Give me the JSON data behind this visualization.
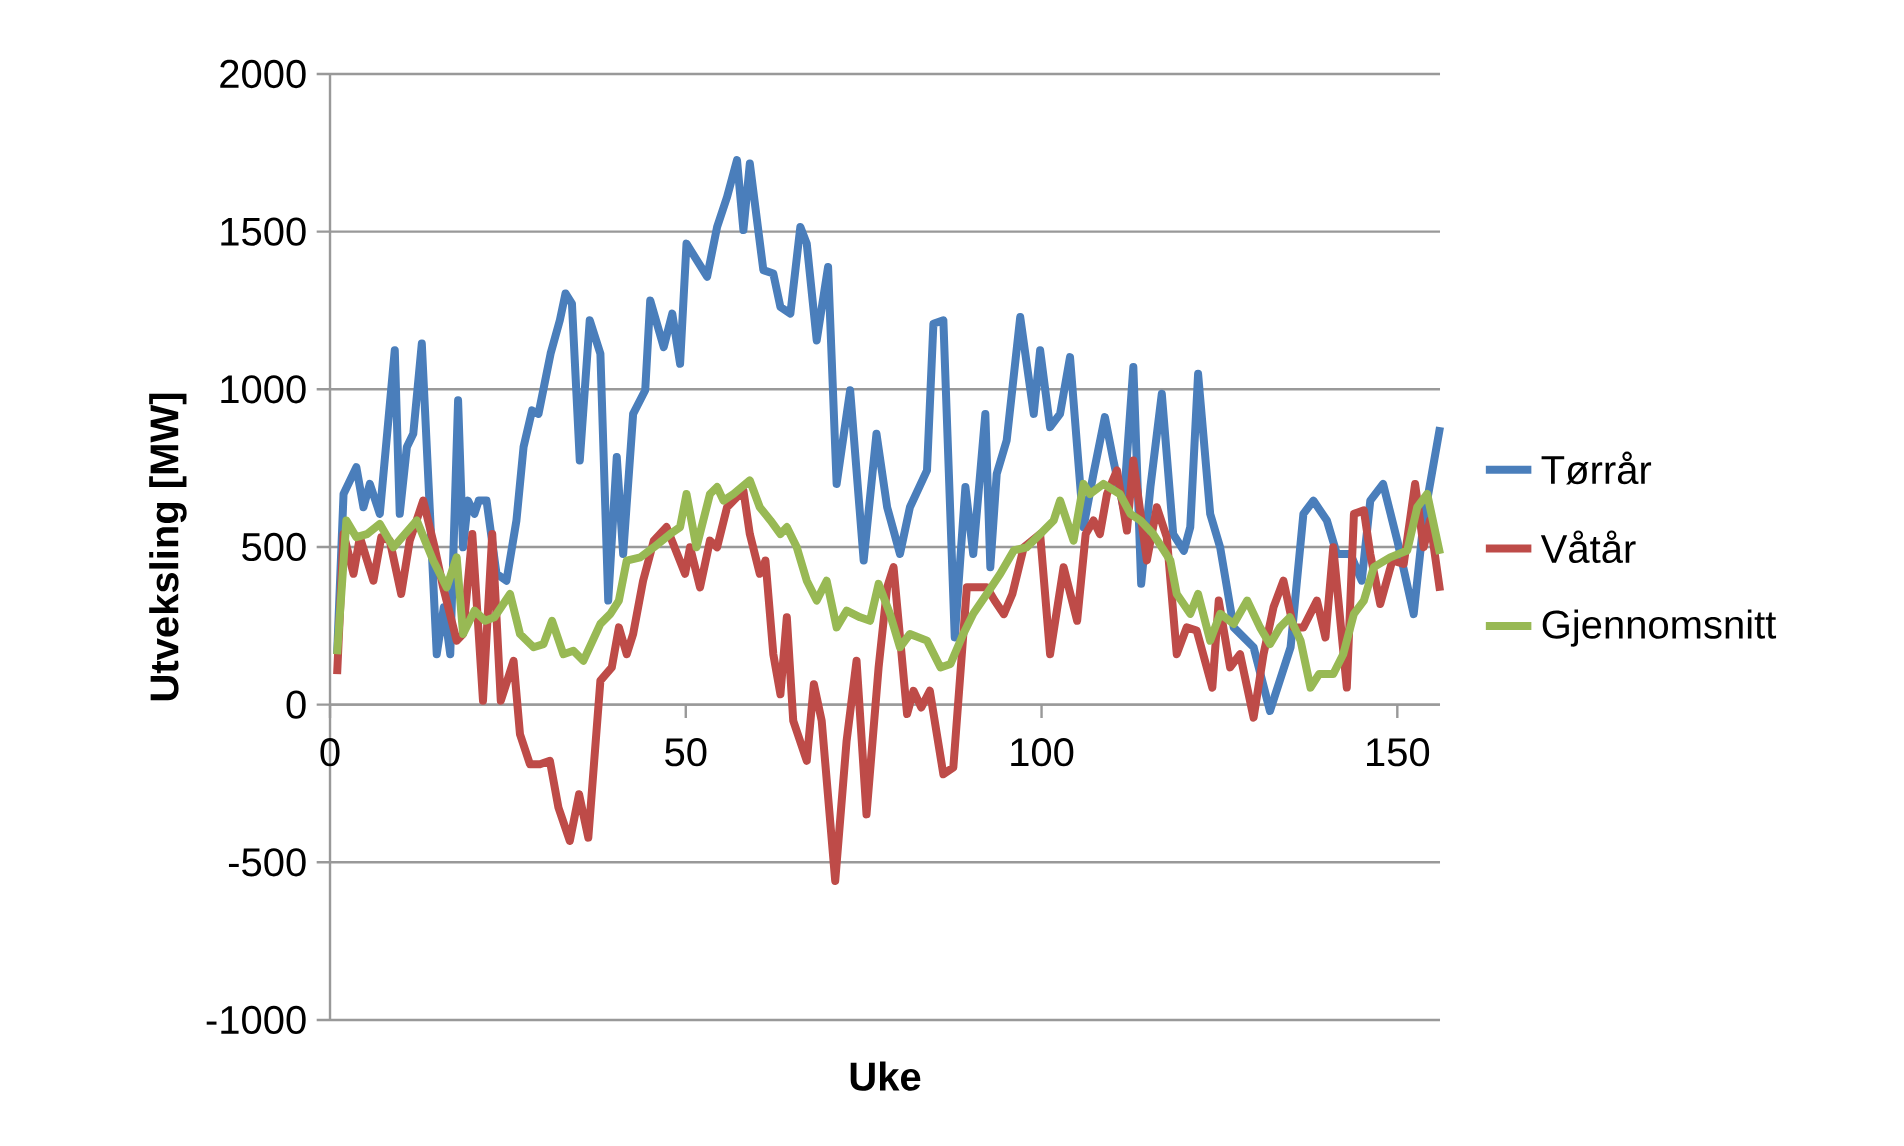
{
  "chart_data": {
    "type": "line",
    "xlabel": "Uke",
    "ylabel": "Utveksling [MW]",
    "xlim": [
      0,
      156
    ],
    "xticks": [
      0,
      50,
      100,
      150
    ],
    "ylim": [
      -1000,
      2000
    ],
    "yticks": [
      -1000,
      -500,
      0,
      500,
      1000,
      1500,
      2000
    ],
    "grid": "y",
    "legend": "right",
    "marker": "none",
    "line_style": "solid",
    "series": [
      {
        "name": "Tørrår",
        "color": "#4a7ebb",
        "x": [
          1,
          1.9,
          3.7,
          4.7,
          5.6,
          7,
          9.1,
          9.8,
          10.8,
          11.7,
          12.9,
          15,
          16,
          16.9,
          18,
          18.7,
          19.4,
          20.3,
          20.9,
          22,
          23.4,
          24.8,
          26.2,
          27.2,
          28.4,
          29.3,
          31,
          32.3,
          33.1,
          34,
          35.1,
          36.5,
          38,
          39.1,
          40.3,
          41.2,
          42.6,
          44.3,
          45,
          46.9,
          48.1,
          49.2,
          50.1,
          53,
          54.4,
          55.8,
          57.2,
          58.1,
          59,
          60.9,
          62.3,
          63.3,
          64.7,
          66.1,
          67,
          68.4,
          70,
          71.2,
          73.1,
          75,
          76.8,
          78.3,
          80.1,
          81.5,
          83.9,
          84.8,
          86.2,
          87.8,
          89.3,
          90.4,
          92.1,
          92.8,
          93.7,
          95.1,
          97,
          98.9,
          99.8,
          101.2,
          102.6,
          104,
          105.9,
          107.3,
          108.9,
          110.1,
          111.5,
          112.9,
          114,
          115.3,
          116.9,
          118.5,
          120,
          120.9,
          122,
          123.7,
          125.1,
          127,
          129.8,
          132.1,
          135,
          136.8,
          138.2,
          140.1,
          141.5,
          143.4,
          145,
          146.2,
          148,
          150,
          152.3,
          153.7,
          156
        ],
        "values": [
          160,
          668,
          753,
          626,
          700,
          605,
          1124,
          605,
          817,
          859,
          1145,
          160,
          309,
          160,
          965,
          499,
          647,
          605,
          647,
          647,
          415,
          393,
          584,
          817,
          933,
          922,
          1113,
          1219,
          1304,
          1272,
          774,
          1219,
          1113,
          330,
          785,
          478,
          922,
          997,
          1282,
          1134,
          1240,
          1081,
          1462,
          1357,
          1515,
          1610,
          1727,
          1505,
          1716,
          1378,
          1367,
          1261,
          1240,
          1515,
          1462,
          1155,
          1388,
          700,
          997,
          457,
          859,
          626,
          478,
          626,
          743,
          1208,
          1219,
          213,
          690,
          478,
          922,
          436,
          732,
          838,
          1229,
          922,
          1124,
          880,
          922,
          1102,
          563,
          732,
          912,
          774,
          626,
          1071,
          383,
          690,
          986,
          541,
          488,
          563,
          1049,
          605,
          499,
          245,
          182,
          -20,
          182,
          605,
          647,
          584,
          478,
          478,
          393,
          647,
          700,
          520,
          287,
          584,
          880
        ]
      },
      {
        "name": "Våtår",
        "color": "#be4b48",
        "x": [
          1,
          1.9,
          3.3,
          4.2,
          6.1,
          7.2,
          8.4,
          10,
          11.2,
          13.1,
          14.7,
          15.9,
          17.8,
          18.7,
          20,
          21.5,
          22.8,
          24,
          25.8,
          26.7,
          28.1,
          29.5,
          30.9,
          32.1,
          33.7,
          35,
          36.3,
          38,
          39.6,
          40.6,
          41.7,
          42.6,
          44,
          45.5,
          47.3,
          49.9,
          50.6,
          52,
          53.4,
          54.4,
          55.8,
          58.1,
          59,
          60.4,
          61.2,
          62.3,
          63.3,
          64.2,
          65.1,
          67,
          68,
          69.1,
          71,
          72.6,
          74,
          75.4,
          77.1,
          78.3,
          79.2,
          81.1,
          82,
          83.1,
          84.3,
          86.2,
          87.6,
          89.5,
          90.9,
          92.3,
          93.4,
          94.7,
          95.9,
          97.5,
          99.8,
          101.2,
          103.1,
          105,
          106.2,
          107.3,
          108.2,
          109.2,
          110.6,
          112,
          112.9,
          114.8,
          116.2,
          117.6,
          119,
          120.4,
          121.8,
          124,
          124.9,
          126.5,
          127.9,
          129.8,
          131.2,
          132.6,
          134,
          135.4,
          136.8,
          138.7,
          139.9,
          141,
          142.9,
          143.9,
          145.3,
          146.2,
          147.6,
          149.3,
          150.9,
          152.5,
          153.7,
          154.6,
          156
        ],
        "values": [
          97,
          541,
          415,
          531,
          393,
          531,
          520,
          351,
          520,
          647,
          499,
          372,
          203,
          224,
          541,
          12,
          541,
          12,
          139,
          -94,
          -189,
          -189,
          -178,
          -326,
          -432,
          -284,
          -422,
          76,
          118,
          245,
          160,
          224,
          393,
          520,
          563,
          415,
          499,
          372,
          520,
          499,
          626,
          679,
          541,
          415,
          457,
          160,
          33,
          277,
          -51,
          -178,
          65,
          -51,
          -559,
          -115,
          139,
          -348,
          118,
          372,
          436,
          -30,
          44,
          -9,
          44,
          -221,
          -199,
          372,
          372,
          372,
          330,
          287,
          351,
          499,
          541,
          160,
          436,
          266,
          541,
          584,
          541,
          668,
          743,
          552,
          774,
          457,
          626,
          531,
          160,
          245,
          235,
          54,
          330,
          118,
          160,
          -41,
          160,
          309,
          393,
          245,
          245,
          330,
          213,
          499,
          54,
          605,
          616,
          478,
          319,
          457,
          446,
          700,
          499,
          584,
          361
        ]
      },
      {
        "name": "Gjennomsnitt",
        "color": "#98b954",
        "x": [
          1,
          2.3,
          3.7,
          5.2,
          7,
          8.9,
          12.2,
          14.5,
          16.4,
          17.8,
          18.7,
          20.3,
          21.8,
          23.1,
          25.3,
          26.7,
          28.6,
          30,
          31.2,
          32.8,
          34.2,
          35.6,
          38,
          39.4,
          40.6,
          41.7,
          43.6,
          45.5,
          47.8,
          49.2,
          50.1,
          51.5,
          53.4,
          54.4,
          55.3,
          56.7,
          59,
          60.4,
          61.9,
          63.3,
          64.2,
          65.6,
          67,
          68.4,
          69.8,
          71.2,
          72.6,
          74.5,
          75.9,
          77.1,
          78.7,
          80.1,
          81.5,
          83.9,
          85.8,
          87.2,
          89,
          90.4,
          92.3,
          94.2,
          96.1,
          97.9,
          99.8,
          101.7,
          102.6,
          104.5,
          105.9,
          106.8,
          108.7,
          111,
          112.5,
          113.9,
          115.7,
          118.1,
          119,
          120.9,
          122,
          123.7,
          125.1,
          127,
          128.9,
          130.7,
          132.1,
          133.5,
          134.9,
          136.4,
          137.8,
          139,
          141,
          142.4,
          143.9,
          145.3,
          146.7,
          149,
          151.4,
          152.8,
          154.2,
          156
        ],
        "values": [
          160,
          584,
          531,
          541,
          573,
          499,
          584,
          457,
          372,
          467,
          224,
          298,
          266,
          277,
          351,
          224,
          182,
          192,
          266,
          160,
          171,
          139,
          256,
          288,
          330,
          457,
          467,
          499,
          541,
          563,
          668,
          499,
          668,
          690,
          647,
          668,
          711,
          626,
          584,
          541,
          563,
          499,
          393,
          330,
          393,
          245,
          298,
          277,
          266,
          383,
          288,
          182,
          224,
          203,
          118,
          129,
          224,
          288,
          351,
          415,
          489,
          499,
          541,
          584,
          647,
          520,
          700,
          668,
          700,
          668,
          605,
          584,
          541,
          457,
          351,
          288,
          351,
          203,
          288,
          256,
          330,
          245,
          192,
          245,
          277,
          203,
          54,
          97,
          97,
          160,
          288,
          330,
          436,
          467,
          489,
          626,
          668,
          478
        ]
      }
    ]
  }
}
